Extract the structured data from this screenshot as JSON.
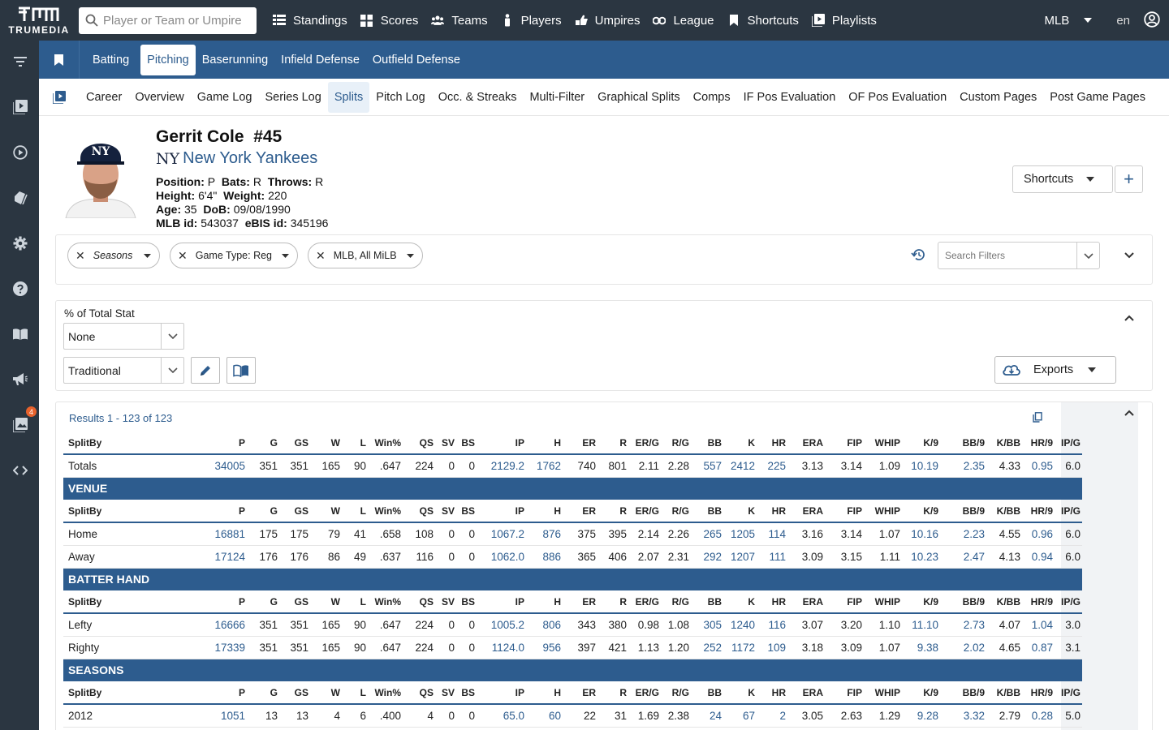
{
  "app": {
    "logo_text": "TRUMEDIA",
    "search_placeholder": "Player or Team or Umpire",
    "nav": [
      {
        "label": "Standings",
        "icon": "standings-icon"
      },
      {
        "label": "Scores",
        "icon": "scores-icon"
      },
      {
        "label": "Teams",
        "icon": "teams-icon"
      },
      {
        "label": "Players",
        "icon": "players-icon"
      },
      {
        "label": "Umpires",
        "icon": "umpires-icon"
      },
      {
        "label": "League",
        "icon": "league-icon"
      },
      {
        "label": "Shortcuts",
        "icon": "bookmark-icon"
      },
      {
        "label": "Playlists",
        "icon": "playlist-icon"
      }
    ],
    "league": "MLB",
    "language": "en"
  },
  "sidebar": {
    "icons": [
      "filter-icon",
      "video-library-icon",
      "play-circle-icon",
      "tags-icon",
      "settings-icon",
      "help-icon",
      "book-icon",
      "announcement-icon",
      "gallery-icon",
      "code-icon"
    ],
    "notification_count": "4"
  },
  "categories": {
    "tabs": [
      "Batting",
      "Pitching",
      "Baserunning",
      "Infield Defense",
      "Outfield Defense"
    ],
    "active": "Pitching"
  },
  "subtabs": {
    "tabs": [
      "Career",
      "Overview",
      "Game Log",
      "Series Log",
      "Splits",
      "Pitch Log",
      "Occ. & Streaks",
      "Multi-Filter",
      "Graphical Splits",
      "Comps",
      "IF Pos Evaluation",
      "OF Pos Evaluation",
      "Custom Pages",
      "Post Game Pages"
    ],
    "active": "Splits"
  },
  "player": {
    "name": "Gerrit Cole",
    "number": "#45",
    "team": "New York Yankees",
    "team_logo": "NY",
    "bio": {
      "position_label": "Position:",
      "position": "P",
      "bats_label": "Bats:",
      "bats": "R",
      "throws_label": "Throws:",
      "throws": "R",
      "height_label": "Height:",
      "height": "6'4\"",
      "weight_label": "Weight:",
      "weight": "220",
      "age_label": "Age:",
      "age": "35",
      "dob_label": "DoB:",
      "dob": "09/08/1990",
      "mlbid_label": "MLB id:",
      "mlbid": "543037",
      "ebis_label": "eBIS id:",
      "ebis": "345196"
    },
    "shortcuts_label": "Shortcuts",
    "add_label": "+"
  },
  "filters": {
    "chips": [
      "Seasons",
      "Game Type: Reg",
      "MLB, All MiLB"
    ],
    "search_placeholder": "Search Filters"
  },
  "options": {
    "title": "% of Total Stat",
    "total_stat_value": "None",
    "stat_view_value": "Traditional",
    "exports_label": "Exports"
  },
  "results": {
    "count_text": "Results 1 - 123 of 123",
    "columns": [
      "SplitBy",
      "P",
      "G",
      "GS",
      "W",
      "L",
      "Win%",
      "QS",
      "SV",
      "BS",
      "IP",
      "H",
      "ER",
      "R",
      "ER/G",
      "R/G",
      "BB",
      "K",
      "HR",
      "ERA",
      "FIP",
      "WHIP",
      "K/9",
      "BB/9",
      "K/BB",
      "HR/9",
      "IP/G"
    ],
    "link_columns": [
      1,
      10,
      11,
      16,
      17,
      18,
      22,
      23,
      25
    ],
    "groups": [
      {
        "title": "",
        "rows": [
          [
            "Totals",
            "34005",
            "351",
            "351",
            "165",
            "90",
            ".647",
            "224",
            "0",
            "0",
            "2129.2",
            "1762",
            "740",
            "801",
            "2.11",
            "2.28",
            "557",
            "2412",
            "225",
            "3.13",
            "3.14",
            "1.09",
            "10.19",
            "2.35",
            "4.33",
            "0.95",
            "6.0"
          ]
        ]
      },
      {
        "title": "VENUE",
        "rows": [
          [
            "Home",
            "16881",
            "175",
            "175",
            "79",
            "41",
            ".658",
            "108",
            "0",
            "0",
            "1067.2",
            "876",
            "375",
            "395",
            "2.14",
            "2.26",
            "265",
            "1205",
            "114",
            "3.16",
            "3.14",
            "1.07",
            "10.16",
            "2.23",
            "4.55",
            "0.96",
            "6.0"
          ],
          [
            "Away",
            "17124",
            "176",
            "176",
            "86",
            "49",
            ".637",
            "116",
            "0",
            "0",
            "1062.0",
            "886",
            "365",
            "406",
            "2.07",
            "2.31",
            "292",
            "1207",
            "111",
            "3.09",
            "3.15",
            "1.11",
            "10.23",
            "2.47",
            "4.13",
            "0.94",
            "6.0"
          ]
        ]
      },
      {
        "title": "BATTER HAND",
        "rows": [
          [
            "Lefty",
            "16666",
            "351",
            "351",
            "165",
            "90",
            ".647",
            "224",
            "0",
            "0",
            "1005.2",
            "806",
            "343",
            "380",
            "0.98",
            "1.08",
            "305",
            "1240",
            "116",
            "3.07",
            "3.20",
            "1.10",
            "11.10",
            "2.73",
            "4.07",
            "1.04",
            "3.0"
          ],
          [
            "Righty",
            "17339",
            "351",
            "351",
            "165",
            "90",
            ".647",
            "224",
            "0",
            "0",
            "1124.0",
            "956",
            "397",
            "421",
            "1.13",
            "1.20",
            "252",
            "1172",
            "109",
            "3.18",
            "3.09",
            "1.07",
            "9.38",
            "2.02",
            "4.65",
            "0.87",
            "3.1"
          ]
        ]
      },
      {
        "title": "SEASONS",
        "rows": [
          [
            "2012",
            "1051",
            "13",
            "13",
            "4",
            "6",
            ".400",
            "4",
            "0",
            "0",
            "65.0",
            "60",
            "22",
            "31",
            "1.69",
            "2.38",
            "24",
            "67",
            "2",
            "3.05",
            "2.63",
            "1.29",
            "9.28",
            "3.32",
            "2.79",
            "0.28",
            "5.0"
          ]
        ]
      }
    ]
  }
}
